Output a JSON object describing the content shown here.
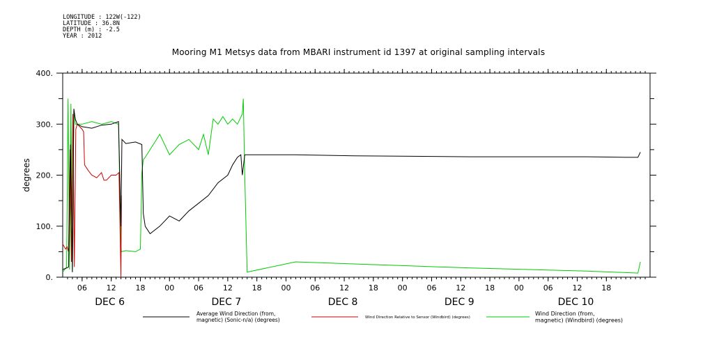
{
  "header": {
    "longitude": "LONGITUDE : 122W(-122)",
    "latitude": "LATITUDE : 36.8N",
    "depth": "DEPTH (m) : -2.5",
    "year": "YEAR : 2012"
  },
  "chart_data": {
    "type": "line",
    "title": "Mooring M1 Metsys data from MBARI instrument id 1397 at original sampling intervals",
    "ylabel": "degrees",
    "xlabel": "",
    "ylim": [
      0,
      400
    ],
    "xlim_hours": [
      0,
      121
    ],
    "y_ticks": [
      "0.",
      "100.",
      "200.",
      "300.",
      "400."
    ],
    "x_hour_ticks": [
      "06",
      "12",
      "18",
      "00",
      "06",
      "12",
      "18",
      "00",
      "06",
      "12",
      "18",
      "00",
      "06",
      "12",
      "18",
      "00",
      "06",
      "12",
      "18"
    ],
    "x_day_labels": [
      "DEC 6",
      "DEC 7",
      "DEC 8",
      "DEC 9",
      "DEC 10"
    ],
    "grid": false,
    "legend_placement": "bottom",
    "colors": {
      "avg_wind": "#000000",
      "relative": "#cc0000",
      "wind_dir": "#00cc00"
    },
    "series": [
      {
        "name": "Average Wind Direction (from, magnetic) (Sonic-n/a) (degrees)",
        "color": "#000000",
        "hours": [
          0,
          0.8,
          1.2,
          1.6,
          2.0,
          2.3,
          2.6,
          3.0,
          4,
          6,
          8,
          10,
          11.5,
          12,
          12.2,
          13,
          15,
          16.3,
          16.6,
          17,
          18,
          20,
          22,
          24,
          26,
          28,
          30,
          32,
          34,
          35,
          36,
          36.7,
          37,
          37.5,
          42,
          48,
          60,
          72,
          84,
          96,
          108,
          116,
          118.5,
          119
        ],
        "values": [
          15,
          18,
          20,
          260,
          10,
          330,
          310,
          300,
          295,
          292,
          298,
          300,
          305,
          100,
          270,
          262,
          265,
          260,
          125,
          100,
          85,
          100,
          120,
          110,
          130,
          145,
          160,
          185,
          200,
          220,
          235,
          240,
          200,
          240,
          240,
          240,
          238,
          237,
          236,
          236,
          236,
          235,
          235,
          245
        ]
      },
      {
        "name": "Wind Direction Relative to Sensor (Windbird) (degrees)",
        "color": "#cc0000",
        "hours": [
          0,
          0.6,
          0.9,
          1.2,
          1.5,
          1.8,
          2.1,
          2.4,
          2.7,
          3.0,
          3.5,
          4,
          4.3,
          4.5,
          5.2,
          6,
          7,
          8,
          8.5,
          9,
          10,
          11,
          11.6,
          12,
          12.1
        ],
        "values": [
          65,
          55,
          60,
          50,
          250,
          30,
          320,
          20,
          290,
          300,
          295,
          290,
          285,
          220,
          210,
          200,
          195,
          205,
          190,
          190,
          200,
          200,
          205,
          0,
          160
        ]
      },
      {
        "name": "Wind Direction (from, magnetic) (Windbird) (degrees)",
        "color": "#00cc00",
        "hours": [
          0,
          0.8,
          1.1,
          1.4,
          1.7,
          2.0,
          2.3,
          2.6,
          3,
          4,
          6,
          8,
          10,
          11.5,
          12,
          12.1,
          13,
          15,
          16,
          16.3,
          16.6,
          17,
          18,
          20,
          22,
          24,
          26,
          28,
          29,
          30,
          31,
          32,
          33,
          34,
          35,
          36,
          37,
          37.2,
          37.5,
          38,
          48,
          60,
          72,
          84,
          96,
          108,
          118.5,
          119
        ],
        "values": [
          10,
          20,
          350,
          15,
          340,
          10,
          330,
          300,
          300,
          300,
          305,
          300,
          305,
          300,
          55,
          50,
          52,
          50,
          55,
          205,
          230,
          235,
          250,
          280,
          240,
          260,
          270,
          250,
          280,
          240,
          310,
          300,
          315,
          300,
          310,
          300,
          320,
          350,
          200,
          10,
          30,
          26,
          22,
          18,
          15,
          12,
          8,
          30
        ]
      }
    ]
  }
}
